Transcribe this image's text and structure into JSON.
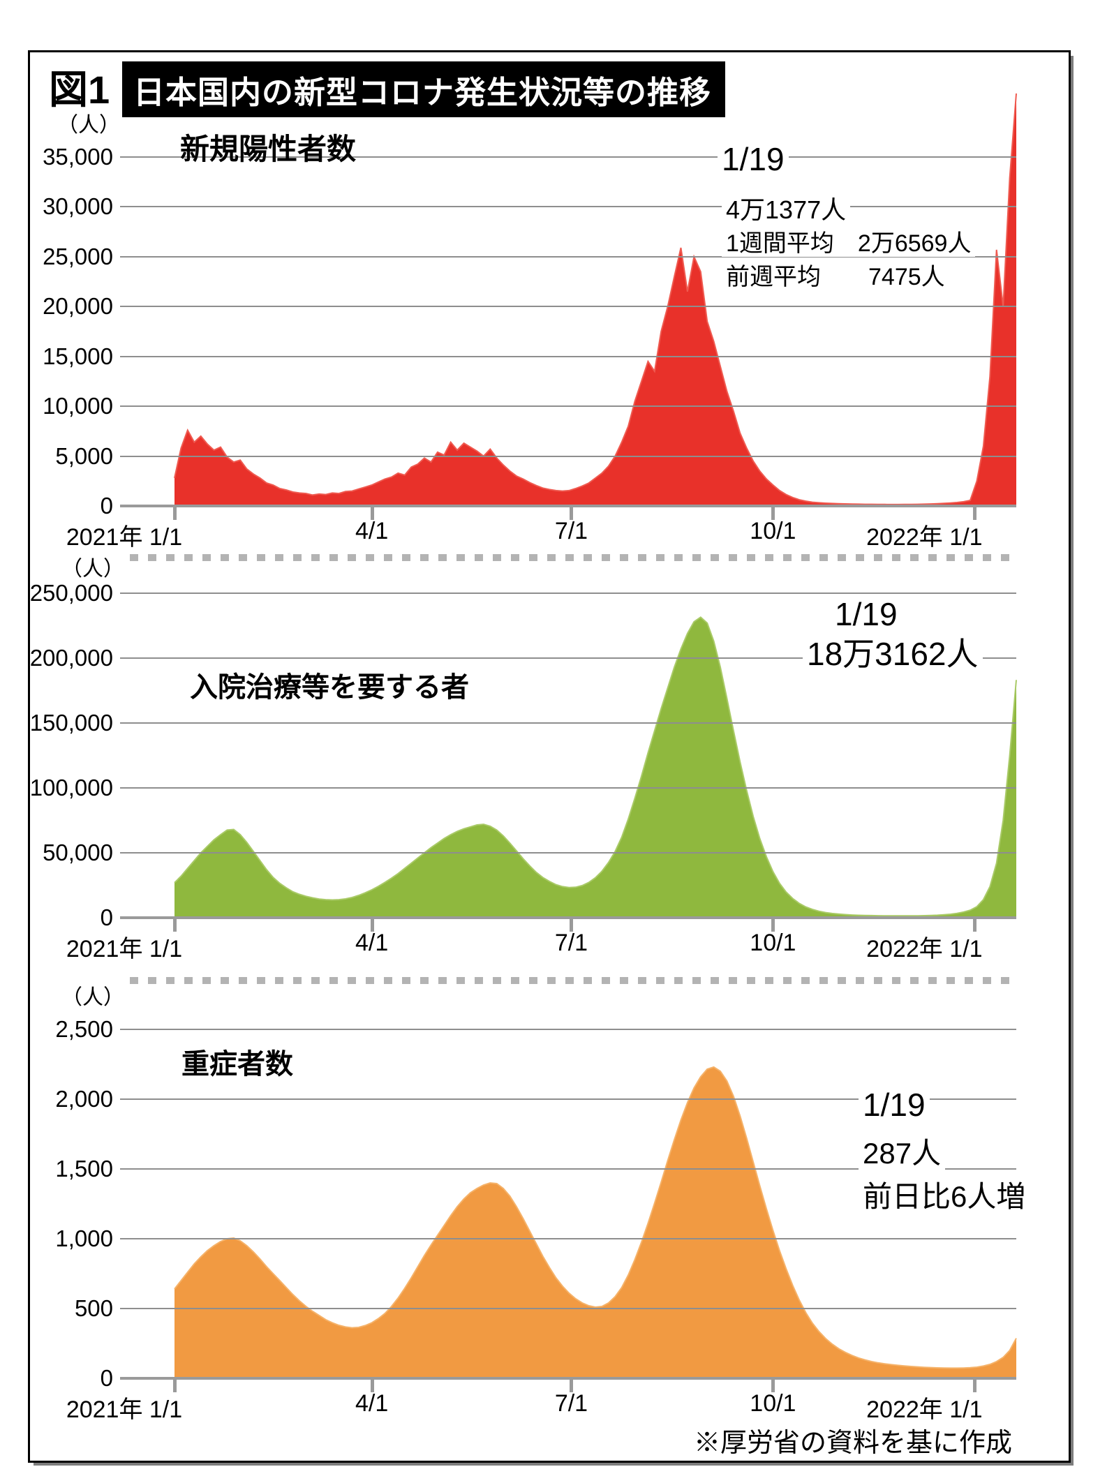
{
  "figure": {
    "label": "図1",
    "title": "日本国内の新型コロナ発生状況等の推移",
    "source_note": "※厚労省の資料を基に作成"
  },
  "chart_data": [
    {
      "type": "area",
      "title": "新規陽性者数",
      "unit": "（人）",
      "color": "#e8312a",
      "edge_color": "#ef5a50",
      "ylim": [
        0,
        35000
      ],
      "y_ticks": [
        {
          "value": 35000,
          "label": "35,000"
        },
        {
          "value": 30000,
          "label": "30,000"
        },
        {
          "value": 25000,
          "label": "25,000"
        },
        {
          "value": 20000,
          "label": "20,000"
        },
        {
          "value": 15000,
          "label": "15,000"
        },
        {
          "value": 10000,
          "label": "10,000"
        },
        {
          "value": 5000,
          "label": "5,000"
        },
        {
          "value": 0,
          "label": "0"
        }
      ],
      "x_ticks": [
        {
          "day": 0,
          "label": "2021年 1/1"
        },
        {
          "day": 90,
          "label": "4/1"
        },
        {
          "day": 181,
          "label": "7/1"
        },
        {
          "day": 273,
          "label": "10/1"
        },
        {
          "day": 365,
          "label": "2022年 1/1"
        }
      ],
      "start_date": "2021-01-01",
      "sample_interval_days": 3,
      "values": [
        2800,
        5800,
        7600,
        6400,
        7000,
        6200,
        5600,
        5900,
        4900,
        4400,
        4600,
        3700,
        3200,
        2800,
        2300,
        2100,
        1750,
        1600,
        1400,
        1300,
        1250,
        1100,
        1200,
        1150,
        1300,
        1250,
        1450,
        1500,
        1700,
        1900,
        2100,
        2400,
        2700,
        2900,
        3300,
        3100,
        3900,
        4200,
        4800,
        4400,
        5400,
        5100,
        6400,
        5600,
        6300,
        5900,
        5500,
        5000,
        5700,
        4800,
        4100,
        3500,
        3000,
        2700,
        2350,
        2050,
        1800,
        1650,
        1550,
        1500,
        1550,
        1750,
        2000,
        2300,
        2800,
        3300,
        4000,
        5000,
        6400,
        8000,
        10500,
        12500,
        14500,
        13500,
        17500,
        20000,
        23000,
        25900,
        21500,
        25000,
        23500,
        18500,
        16500,
        14000,
        11500,
        9500,
        7300,
        5800,
        4500,
        3500,
        2700,
        2100,
        1550,
        1150,
        850,
        620,
        480,
        380,
        320,
        280,
        255,
        230,
        210,
        195,
        180,
        170,
        165,
        160,
        155,
        150,
        150,
        155,
        160,
        170,
        185,
        205,
        230,
        260,
        300,
        350,
        430,
        560,
        2500,
        6000,
        13000,
        25700,
        20000,
        32900,
        41377
      ],
      "annotations": [
        "1/19",
        "4万1377人",
        "1週間平均　2万6569人",
        "前週平均　　7475人"
      ]
    },
    {
      "type": "area",
      "title": "入院治療等を要する者",
      "unit": "（人）",
      "color": "#8fb83e",
      "edge_color": "#a9ca67",
      "ylim": [
        0,
        250000
      ],
      "y_ticks": [
        {
          "value": 250000,
          "label": "250,000"
        },
        {
          "value": 200000,
          "label": "200,000"
        },
        {
          "value": 150000,
          "label": "150,000"
        },
        {
          "value": 100000,
          "label": "100,000"
        },
        {
          "value": 50000,
          "label": "50,000"
        },
        {
          "value": 0,
          "label": "0"
        }
      ],
      "x_ticks": [
        {
          "day": 0,
          "label": "2021年 1/1"
        },
        {
          "day": 90,
          "label": "4/1"
        },
        {
          "day": 181,
          "label": "7/1"
        },
        {
          "day": 273,
          "label": "10/1"
        },
        {
          "day": 365,
          "label": "2022年 1/1"
        }
      ],
      "start_date": "2021-01-01",
      "sample_interval_days": 3,
      "values": [
        27000,
        32000,
        38000,
        44000,
        50000,
        55000,
        60000,
        64000,
        67500,
        68000,
        64000,
        58000,
        51000,
        44000,
        37000,
        31000,
        26500,
        23000,
        20000,
        18000,
        16500,
        15300,
        14400,
        13900,
        13700,
        13900,
        14500,
        15600,
        17200,
        19200,
        21500,
        24200,
        27200,
        30500,
        34000,
        38000,
        42000,
        46000,
        50000,
        54000,
        57500,
        61000,
        64000,
        66500,
        68500,
        70000,
        71500,
        72000,
        70500,
        67500,
        63000,
        57500,
        51500,
        45500,
        40000,
        35000,
        31000,
        28000,
        25500,
        24000,
        23200,
        23500,
        24800,
        27200,
        30800,
        35800,
        42500,
        51000,
        62000,
        76000,
        92000,
        109000,
        127000,
        144000,
        161000,
        177000,
        193000,
        207000,
        219000,
        228000,
        231500,
        227000,
        213000,
        193000,
        169000,
        144000,
        120000,
        98000,
        78000,
        61000,
        47000,
        35500,
        26500,
        19800,
        14800,
        11000,
        8300,
        6400,
        5000,
        4000,
        3300,
        2800,
        2400,
        2100,
        1900,
        1750,
        1650,
        1550,
        1500,
        1450,
        1430,
        1430,
        1460,
        1520,
        1620,
        1760,
        1950,
        2250,
        2700,
        3400,
        4400,
        5800,
        8500,
        14000,
        24000,
        42000,
        75000,
        125000,
        183162
      ],
      "annotations": [
        "1/19",
        "18万3162人"
      ]
    },
    {
      "type": "area",
      "title": "重症者数",
      "unit": "（人）",
      "color": "#f19a42",
      "edge_color": "#f5b269",
      "ylim": [
        0,
        2500
      ],
      "y_ticks": [
        {
          "value": 2500,
          "label": "2,500"
        },
        {
          "value": 2000,
          "label": "2,000"
        },
        {
          "value": 1500,
          "label": "1,500"
        },
        {
          "value": 1000,
          "label": "1,000"
        },
        {
          "value": 500,
          "label": "500"
        },
        {
          "value": 0,
          "label": "0"
        }
      ],
      "x_ticks": [
        {
          "day": 0,
          "label": "2021年 1/1"
        },
        {
          "day": 90,
          "label": "4/1"
        },
        {
          "day": 181,
          "label": "7/1"
        },
        {
          "day": 273,
          "label": "10/1"
        },
        {
          "day": 365,
          "label": "2022年 1/1"
        }
      ],
      "start_date": "2021-01-01",
      "sample_interval_days": 3,
      "values": [
        640,
        700,
        760,
        820,
        870,
        915,
        950,
        980,
        1000,
        1005,
        985,
        950,
        905,
        855,
        800,
        750,
        700,
        650,
        600,
        555,
        515,
        480,
        450,
        420,
        398,
        380,
        368,
        362,
        365,
        378,
        398,
        428,
        465,
        515,
        575,
        645,
        720,
        800,
        880,
        955,
        1025,
        1095,
        1165,
        1230,
        1285,
        1330,
        1360,
        1385,
        1400,
        1395,
        1360,
        1305,
        1230,
        1145,
        1055,
        965,
        875,
        795,
        720,
        660,
        610,
        570,
        540,
        520,
        510,
        515,
        540,
        585,
        650,
        740,
        850,
        975,
        1110,
        1255,
        1405,
        1560,
        1710,
        1850,
        1975,
        2080,
        2160,
        2215,
        2230,
        2200,
        2130,
        2020,
        1880,
        1720,
        1550,
        1380,
        1215,
        1060,
        915,
        785,
        665,
        560,
        470,
        395,
        335,
        285,
        245,
        212,
        186,
        164,
        146,
        132,
        120,
        111,
        104,
        98,
        93,
        89,
        85,
        82,
        79,
        77,
        75,
        74,
        73,
        73,
        74,
        76,
        80,
        88,
        100,
        120,
        150,
        200,
        287
      ],
      "annotations": [
        "1/19",
        "287人",
        "前日比6人増"
      ]
    }
  ]
}
